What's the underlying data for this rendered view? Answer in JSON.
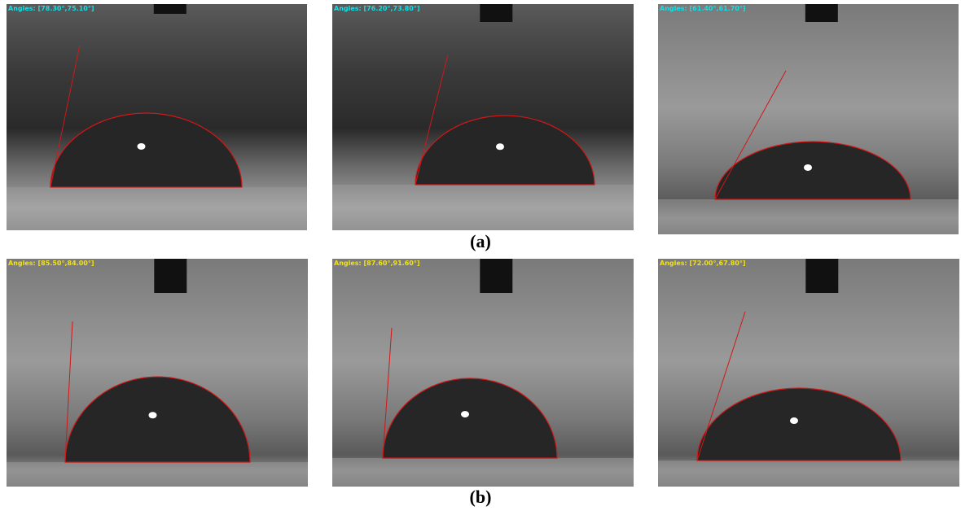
{
  "rows": [
    {
      "caption": "(a)",
      "panels": [
        {
          "label": "Angles: [78.30°,75.10°]"
        },
        {
          "label": "Angles: [76.20°,73.80°]"
        },
        {
          "label": "Angles: [61.40°,61.70°]"
        }
      ]
    },
    {
      "caption": "(b)",
      "panels": [
        {
          "label": "Angles: [85.50°,84.00°]"
        },
        {
          "label": "Angles: [87.60°,91.60°]"
        },
        {
          "label": "Angles: [72.00°,67.80°]"
        }
      ]
    }
  ]
}
